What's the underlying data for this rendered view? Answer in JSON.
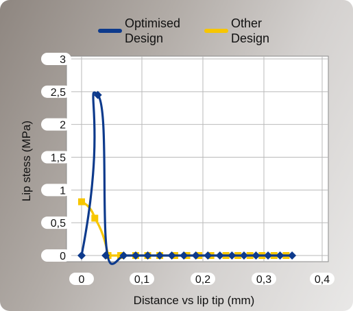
{
  "chart_data": {
    "type": "line",
    "xlabel": "Distance vs lip tip  (mm)",
    "ylabel": "Lip stess  (MPa)",
    "xlim": [
      0,
      0.4
    ],
    "ylim": [
      0,
      3
    ],
    "x_ticks": [
      0,
      0.1,
      0.2,
      0.3,
      0.4
    ],
    "x_tick_labels": [
      "0",
      "0,1",
      "0,2",
      "0,3",
      "0,4"
    ],
    "y_ticks": [
      0,
      0.5,
      1,
      1.5,
      2,
      2.5,
      3
    ],
    "y_tick_labels": [
      "0",
      "0,5",
      "1",
      "1,5",
      "2",
      "2,5",
      "3"
    ],
    "grid": true,
    "legend_position": "top",
    "series": [
      {
        "name": "Optimised Design",
        "color": "#0d3a8c",
        "marker": "diamond",
        "x": [
          0,
          0.027,
          0.04,
          0.07,
          0.09,
          0.11,
          0.13,
          0.15,
          0.17,
          0.19,
          0.21,
          0.23,
          0.25,
          0.27,
          0.29,
          0.31,
          0.33,
          0.35
        ],
        "y": [
          0,
          2.45,
          0,
          0,
          0,
          0,
          0,
          0,
          0,
          0,
          0,
          0,
          0,
          0,
          0,
          0,
          0,
          0
        ]
      },
      {
        "name": "Other Design",
        "color": "#f7c600",
        "marker": "square",
        "x": [
          0,
          0.022,
          0.044,
          0.065,
          0.09,
          0.11,
          0.13,
          0.155,
          0.175,
          0.195,
          0.215,
          0.24,
          0.26,
          0.28,
          0.3,
          0.32,
          0.34
        ],
        "y": [
          0.82,
          0.57,
          0,
          0,
          0,
          0,
          0,
          0,
          0,
          0,
          0,
          0,
          0,
          0,
          0,
          0,
          0
        ]
      }
    ]
  }
}
